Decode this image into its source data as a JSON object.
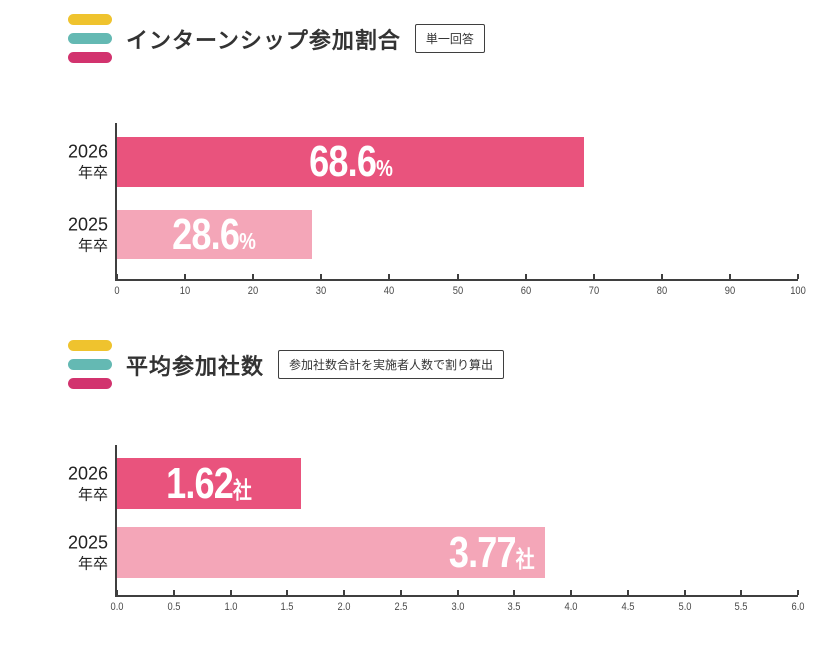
{
  "colors": {
    "bar_dark_pink": "#e9537d",
    "bar_light_pink": "#f4a6b8",
    "pill_yellow": "#efc32e",
    "pill_teal": "#64b9b3",
    "pill_pink": "#d2336e",
    "axis": "#3f3f3f",
    "text": "#333333",
    "value_text": "#ffffff"
  },
  "chart_data": [
    {
      "type": "bar",
      "orientation": "horizontal",
      "title": "インターンシップ参加割合",
      "badge": "単一回答",
      "categories": [
        "2026年卒",
        "2025年卒"
      ],
      "category_lines": [
        [
          "2026",
          "年卒"
        ],
        [
          "2025",
          "年卒"
        ]
      ],
      "values": [
        68.6,
        28.6
      ],
      "value_labels": [
        {
          "number": "68.6",
          "unit": "%"
        },
        {
          "number": "28.6",
          "unit": "%"
        }
      ],
      "label_align": [
        "center",
        "center"
      ],
      "bar_colors": [
        "#e9537d",
        "#f4a6b8"
      ],
      "xlim": [
        0,
        100
      ],
      "ticks": [
        0,
        10,
        20,
        30,
        40,
        50,
        60,
        70,
        80,
        90,
        100
      ],
      "tick_labels": [
        "0",
        "10",
        "20",
        "30",
        "40",
        "50",
        "60",
        "70",
        "80",
        "90",
        "100"
      ],
      "grid": false,
      "legend": "none"
    },
    {
      "type": "bar",
      "orientation": "horizontal",
      "title": "平均参加社数",
      "badge": "参加社数合計を実施者人数で割り算出",
      "categories": [
        "2026年卒",
        "2025年卒"
      ],
      "category_lines": [
        [
          "2026",
          "年卒"
        ],
        [
          "2025",
          "年卒"
        ]
      ],
      "values": [
        1.62,
        3.77
      ],
      "value_labels": [
        {
          "number": "1.62",
          "unit": "社"
        },
        {
          "number": "3.77",
          "unit": "社"
        }
      ],
      "label_align": [
        "center",
        "right"
      ],
      "bar_colors": [
        "#e9537d",
        "#f4a6b8"
      ],
      "xlim": [
        0,
        6
      ],
      "ticks": [
        0,
        0.5,
        1,
        1.5,
        2,
        2.5,
        3,
        3.5,
        4,
        4.5,
        5,
        5.5,
        6
      ],
      "tick_labels": [
        "0.0",
        "0.5",
        "1.0",
        "1.5",
        "2.0",
        "2.5",
        "3.0",
        "3.5",
        "4.0",
        "4.5",
        "5.0",
        "5.5",
        "6.0"
      ],
      "grid": false,
      "legend": "none"
    }
  ]
}
